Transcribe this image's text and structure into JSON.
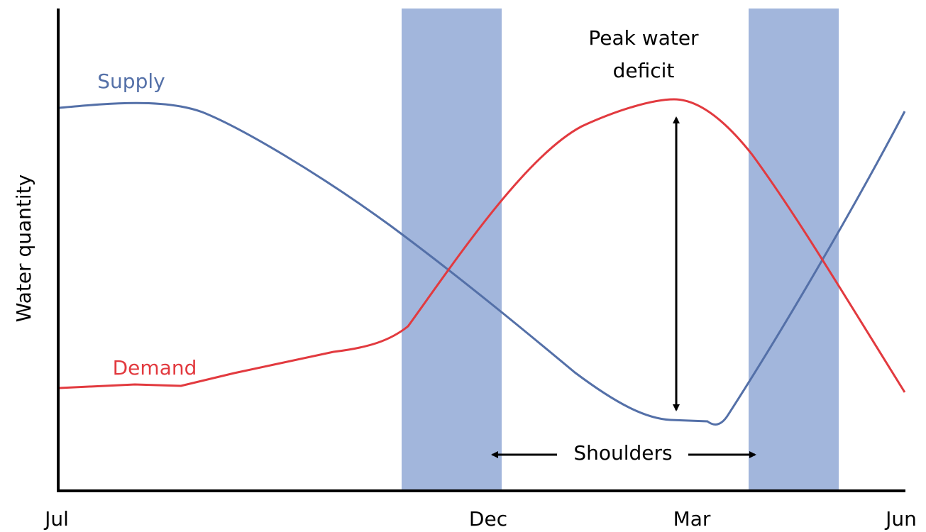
{
  "y_axis_label": "Water quantity",
  "x_labels": [
    "Jul",
    "Dec",
    "Mar",
    "Jun"
  ],
  "series_labels": {
    "supply": "Supply",
    "demand": "Demand"
  },
  "annotations": {
    "peak": [
      "Peak water",
      "deficit"
    ],
    "shoulders": "Shoulders"
  }
}
